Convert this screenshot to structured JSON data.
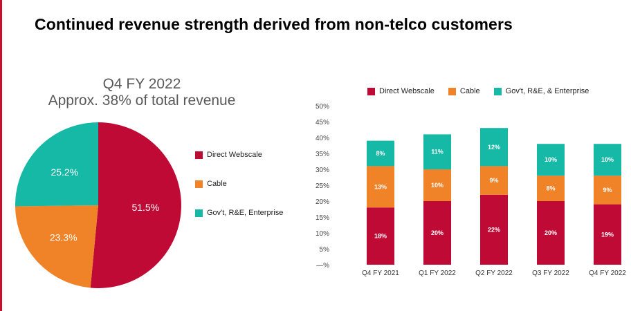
{
  "slide": {
    "title": "Continued revenue strength derived from non-telco customers",
    "accent_color": "#c8102e"
  },
  "chart_data": [
    {
      "type": "pie",
      "title": "Q4 FY 2022",
      "subtitle": "Approx. 38% of total revenue",
      "legend_position": "right",
      "slices": [
        {
          "label": "Direct Webscale",
          "value": 51.5,
          "display": "51.5%",
          "color": "#c00a36"
        },
        {
          "label": "Cable",
          "value": 23.3,
          "display": "23.3%",
          "color": "#f08228"
        },
        {
          "label": "Gov't, R&E, Enterprise",
          "value": 25.2,
          "display": "25.2%",
          "color": "#16b8a6"
        }
      ]
    },
    {
      "type": "bar",
      "stacked": true,
      "categories": [
        "Q4 FY 2021",
        "Q1 FY 2022",
        "Q2 FY 2022",
        "Q3 FY 2022",
        "Q4 FY 2022"
      ],
      "series": [
        {
          "name": "Direct Webscale",
          "color": "#c00a36",
          "values": [
            18,
            20,
            22,
            20,
            19
          ],
          "labels": [
            "18%",
            "20%",
            "22%",
            "20%",
            "19%"
          ]
        },
        {
          "name": "Cable",
          "color": "#f08228",
          "values": [
            13,
            10,
            9,
            8,
            9
          ],
          "labels": [
            "13%",
            "10%",
            "9%",
            "8%",
            "9%"
          ]
        },
        {
          "name": "Gov't, R&E, & Enterprise",
          "color": "#16b8a6",
          "values": [
            8,
            11,
            12,
            10,
            10
          ],
          "labels": [
            "8%",
            "11%",
            "12%",
            "10%",
            "10%"
          ]
        }
      ],
      "ylim": [
        0,
        50
      ],
      "yticks": [
        0,
        5,
        10,
        15,
        20,
        25,
        30,
        35,
        40,
        45,
        50
      ],
      "ytick_labels": [
        "—%",
        "5%",
        "10%",
        "15%",
        "20%",
        "25%",
        "30%",
        "35%",
        "40%",
        "45%",
        "50%"
      ],
      "legend_position": "top",
      "grid": false
    }
  ]
}
